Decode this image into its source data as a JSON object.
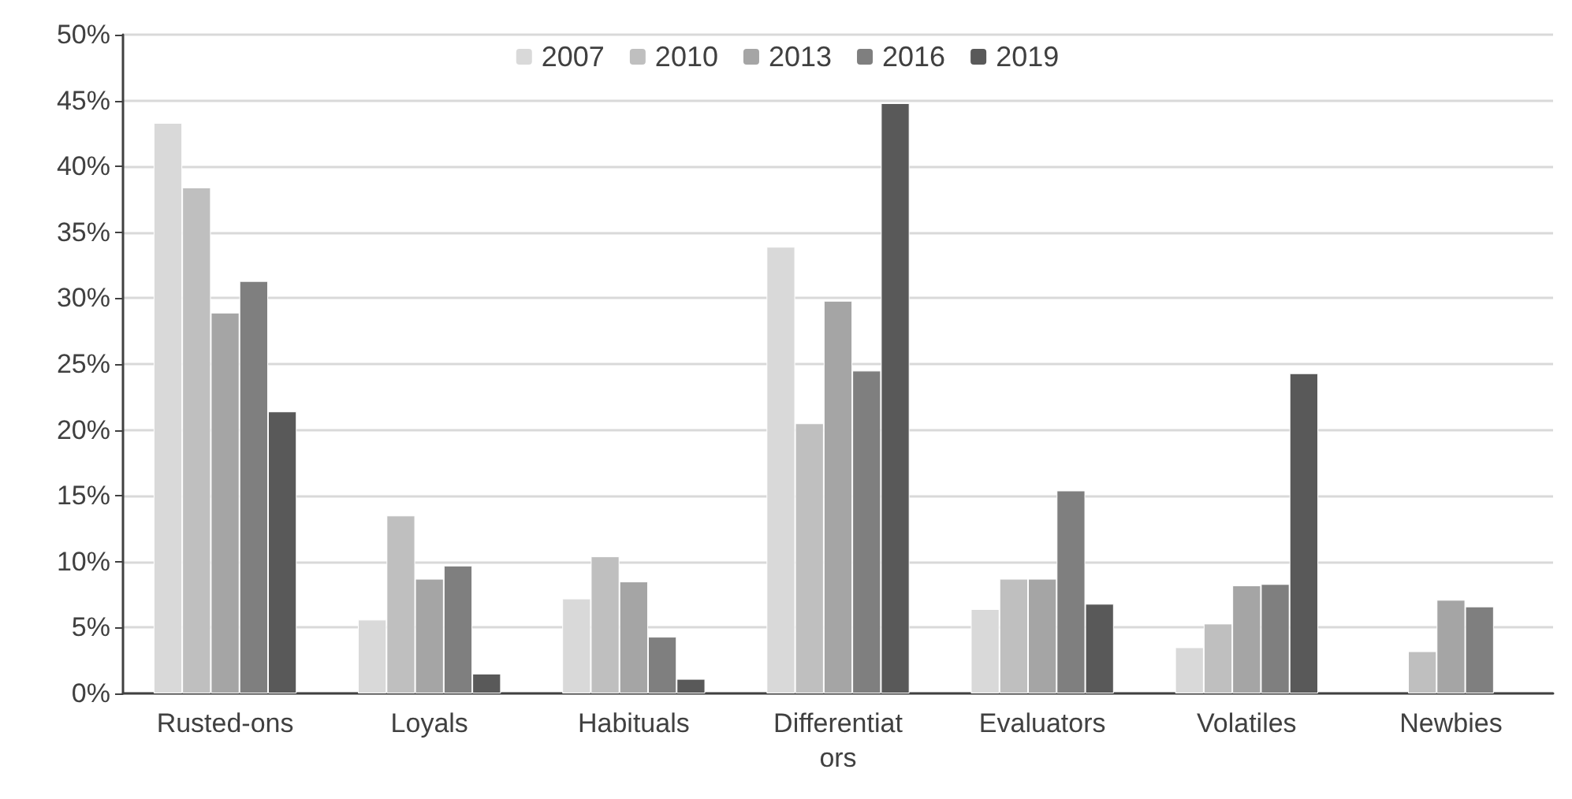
{
  "chart_data": {
    "type": "bar",
    "categories": [
      "Rusted-ons",
      "Loyals",
      "Habituals",
      "Differentiators",
      "Evaluators",
      "Volatiles",
      "Newbies"
    ],
    "series": [
      {
        "name": "2007",
        "color": "#d9d9d9",
        "values": [
          43.3,
          5.6,
          7.2,
          33.9,
          6.4,
          3.5,
          null
        ]
      },
      {
        "name": "2010",
        "color": "#bfbfbf",
        "values": [
          38.4,
          13.5,
          10.4,
          20.5,
          8.7,
          5.3,
          3.2
        ]
      },
      {
        "name": "2013",
        "color": "#a5a5a5",
        "values": [
          28.9,
          8.7,
          8.5,
          29.8,
          8.7,
          8.2,
          7.1
        ]
      },
      {
        "name": "2016",
        "color": "#7f7f7f",
        "values": [
          31.3,
          9.7,
          4.3,
          24.5,
          15.4,
          8.3,
          6.6
        ]
      },
      {
        "name": "2019",
        "color": "#595959",
        "values": [
          21.4,
          1.5,
          1.1,
          44.8,
          6.8,
          24.3,
          null
        ]
      }
    ],
    "ylim": [
      0,
      50
    ],
    "yticks": [
      {
        "value": 0,
        "label": "0%"
      },
      {
        "value": 5,
        "label": "5%"
      },
      {
        "value": 10,
        "label": "10%"
      },
      {
        "value": 15,
        "label": "15%"
      },
      {
        "value": 20,
        "label": "20%"
      },
      {
        "value": 25,
        "label": "25%"
      },
      {
        "value": 30,
        "label": "30%"
      },
      {
        "value": 35,
        "label": "35%"
      },
      {
        "value": 40,
        "label": "40%"
      },
      {
        "value": 45,
        "label": "45%"
      },
      {
        "value": 50,
        "label": "50%"
      }
    ],
    "grid": "y",
    "legend": "top"
  }
}
